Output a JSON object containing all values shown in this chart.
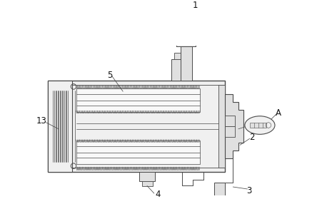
{
  "bg_color": "#ffffff",
  "line_color": "#4a4a4a",
  "fill_light": "#f0f0f0",
  "fill_mid": "#e0e0e0",
  "fill_dark": "#cccccc"
}
